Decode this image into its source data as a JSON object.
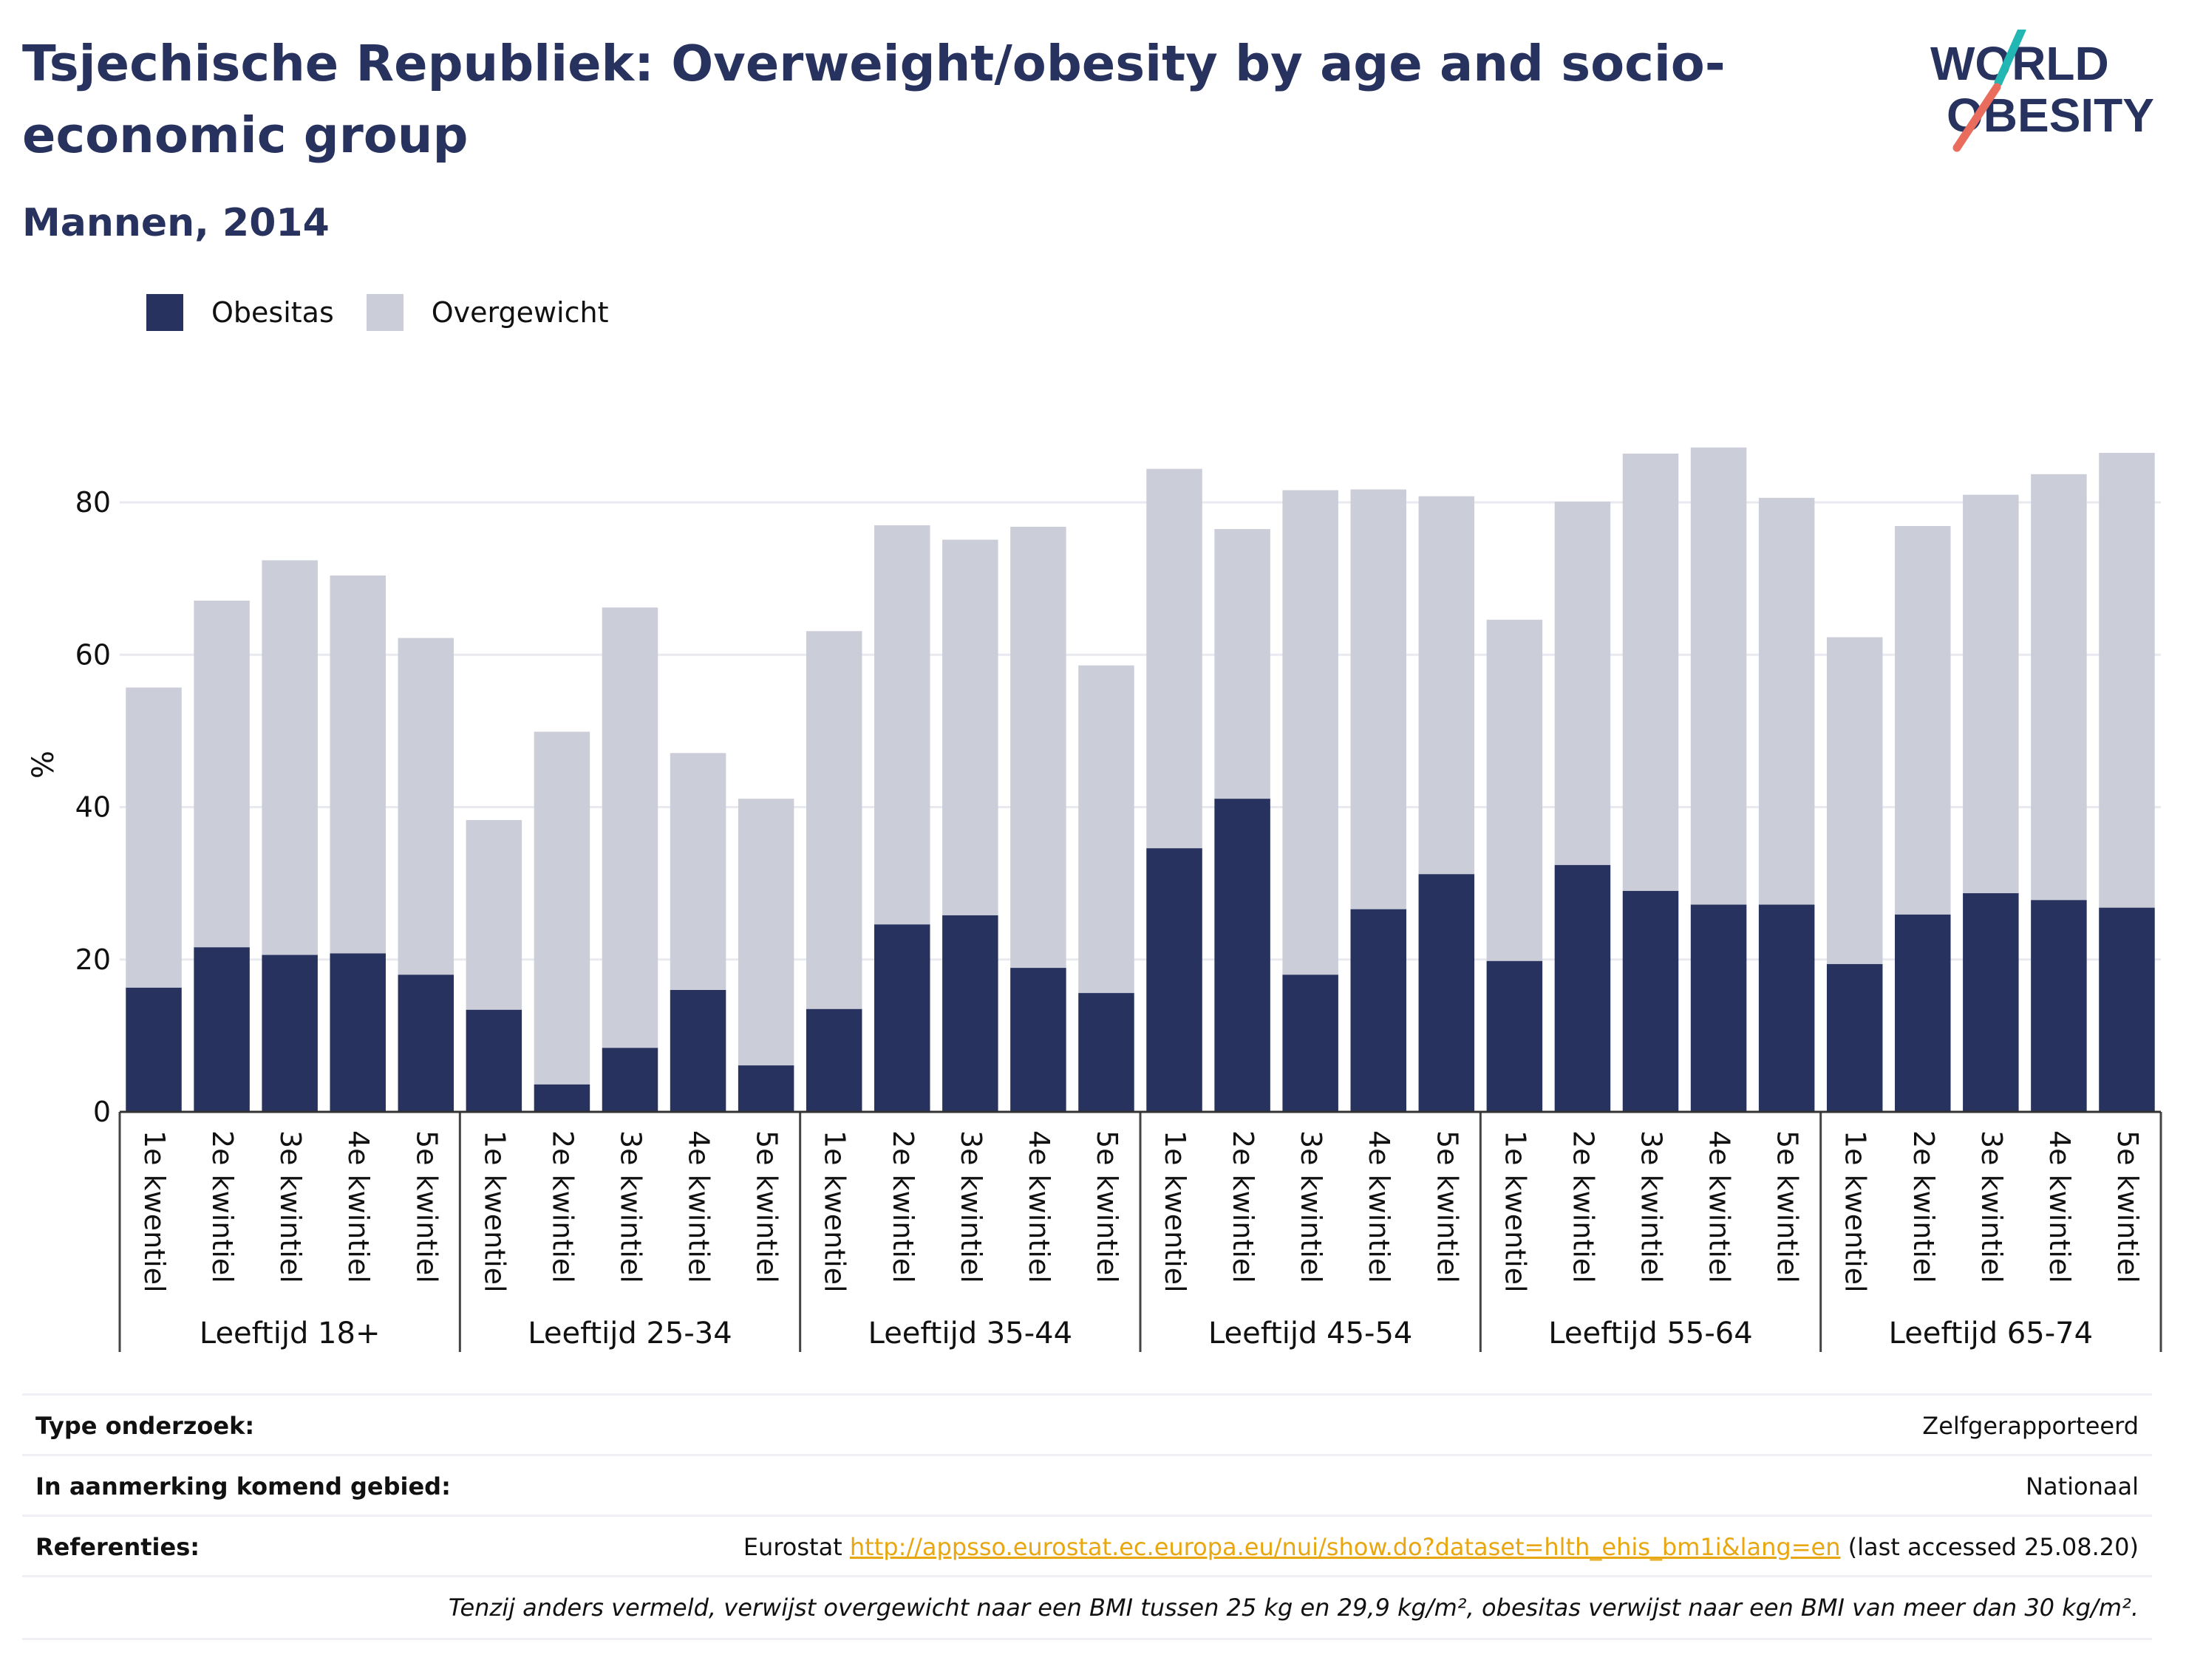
{
  "header": {
    "title": "Tsjechische Republiek: Overweight/obesity by age and socio-economic group",
    "subtitle": "Mannen, 2014",
    "logo_line1": "WORLD",
    "logo_line2": "OBESITY"
  },
  "colors": {
    "obesity": "#27325f",
    "overweight": "#cbcdd9",
    "title": "#27325f",
    "link": "#e8a711",
    "grid": "#e9eaf0"
  },
  "chart_data": {
    "type": "bar",
    "stacked": true,
    "title": "Tsjechische Republiek: Overweight/obesity by age and socio-economic group",
    "subtitle": "Mannen, 2014",
    "ylabel": "%",
    "ylim": [
      0,
      90
    ],
    "yticks": [
      0,
      20,
      40,
      60,
      80
    ],
    "grid": true,
    "legend_position": "top-left",
    "groups": [
      "Leeftijd 18+",
      "Leeftijd 25-34",
      "Leeftijd 35-44",
      "Leeftijd 45-54",
      "Leeftijd 55-64",
      "Leeftijd 65-74"
    ],
    "categories": [
      "1e kwentiel",
      "2e kwintiel",
      "3e kwintiel",
      "4e kwintiel",
      "5e kwintiel"
    ],
    "series": [
      {
        "name": "Obesitas",
        "values": [
          [
            16.3,
            21.6,
            20.6,
            20.8,
            18.0
          ],
          [
            13.4,
            3.6,
            8.4,
            16.0,
            6.1
          ],
          [
            13.5,
            24.6,
            25.8,
            18.9,
            15.6
          ],
          [
            34.6,
            41.1,
            18.0,
            26.6,
            31.2
          ],
          [
            19.8,
            32.4,
            29.0,
            27.2,
            27.2
          ],
          [
            19.4,
            25.9,
            28.7,
            27.8,
            26.8
          ]
        ]
      },
      {
        "name": "Overgewicht",
        "values": [
          [
            39.4,
            45.5,
            51.8,
            49.6,
            44.2
          ],
          [
            24.9,
            46.3,
            57.8,
            31.1,
            35.0
          ],
          [
            49.6,
            52.4,
            49.3,
            57.9,
            43.0
          ],
          [
            49.8,
            35.4,
            63.6,
            55.1,
            49.6
          ],
          [
            44.8,
            47.7,
            57.4,
            60.0,
            53.4
          ],
          [
            42.9,
            51.0,
            52.3,
            55.9,
            59.7
          ]
        ]
      }
    ]
  },
  "meta": {
    "type_label": "Type onderzoek:",
    "type_value": "Zelfgerapporteerd",
    "area_label": "In aanmerking komend gebied:",
    "area_value": "Nationaal",
    "ref_label": "Referenties:",
    "ref_prefix": "Eurostat",
    "ref_link": "http://appsso.eurostat.ec.europa.eu/nui/show.do?dataset=hlth_ehis_bm1i&lang=en",
    "ref_suffix": "(last accessed 25.08.20)",
    "note": "Tenzij anders vermeld, verwijst overgewicht naar een BMI tussen 25 kg en 29,9 kg/m², obesitas verwijst naar een BMI van meer dan 30 kg/m²."
  }
}
